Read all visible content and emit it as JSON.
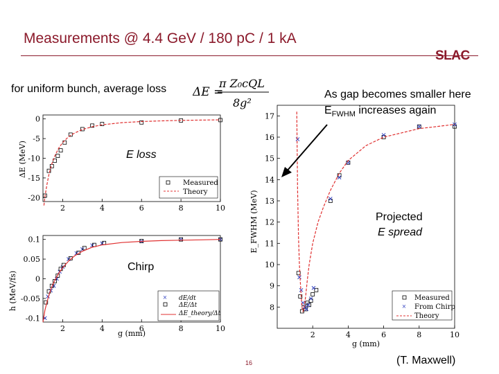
{
  "slide": {
    "title": "Measurements @ 4.4 GeV / 180 pC / 1 kA",
    "logo": "SLAC",
    "uniform_note": "for uniform bunch, average loss",
    "formula": {
      "lhs": "ΔE =",
      "numerator": "π Z₀cQL",
      "denominator": "8g²"
    },
    "gap_note_line1": "As gap becomes smaller here",
    "gap_note_line2_pre": "E",
    "gap_note_line2_sub": "FWHM",
    "gap_note_line2_post": " increases again",
    "label_eloss": "E loss",
    "label_chirp": "Chirp",
    "label_spread_line1": "Projected",
    "label_spread_line2": "E spread",
    "page_number": "16",
    "credit": "(T. Maxwell)",
    "colors": {
      "title": "#8b1a2b",
      "theory": "#e03030",
      "measured": "#000000",
      "chirp": "#2f3fbf"
    }
  },
  "chart_data": [
    {
      "type": "scatter",
      "xlabel": "",
      "ylabel": "ΔE (MeV)",
      "xlim": [
        1,
        10
      ],
      "ylim": [
        -21,
        1
      ],
      "xticks": [
        2,
        4,
        6,
        8,
        10
      ],
      "yticks": [
        0,
        -5,
        -10,
        -15,
        -20
      ],
      "ytick_labels": [
        "0",
        "-5",
        "-10",
        "-15",
        "-20"
      ],
      "legend": [
        "Measured",
        "Theory"
      ],
      "series": [
        {
          "name": "Measured",
          "marker": "square",
          "x": [
            1.1,
            1.3,
            1.45,
            1.6,
            1.75,
            1.9,
            2.1,
            2.4,
            3.0,
            3.5,
            4.0,
            6.0,
            8.0,
            10.0
          ],
          "y": [
            -19.5,
            -13.2,
            -12.0,
            -10.6,
            -9.4,
            -8.0,
            -6.0,
            -4.0,
            -2.6,
            -1.7,
            -1.3,
            -0.9,
            -0.4,
            -0.3
          ]
        },
        {
          "name": "Theory",
          "marker": "line",
          "x": [
            1.05,
            1.1,
            1.2,
            1.3,
            1.45,
            1.6,
            1.8,
            2.0,
            2.3,
            2.6,
            3.0,
            3.5,
            4.0,
            5.0,
            6.0,
            7.0,
            8.0,
            9.0,
            10.0
          ],
          "y": [
            -22.0,
            -19.8,
            -16.7,
            -14.2,
            -11.4,
            -9.4,
            -7.4,
            -6.0,
            -4.5,
            -3.6,
            -2.7,
            -2.0,
            -1.5,
            -0.96,
            -0.67,
            -0.49,
            -0.38,
            -0.3,
            -0.24
          ]
        }
      ]
    },
    {
      "type": "scatter",
      "xlabel": "g (mm)",
      "ylabel": "h (MeV/fs)",
      "xlim": [
        1,
        10
      ],
      "ylim": [
        -0.11,
        0.11
      ],
      "xticks": [
        2,
        4,
        6,
        8,
        10
      ],
      "yticks": [
        0.1,
        0.05,
        0,
        -0.05,
        -0.1
      ],
      "ytick_labels": [
        "0.1",
        "0.05",
        "0",
        "-0.05",
        "-0.1"
      ],
      "legend": [
        "dE/dt",
        "ΔE/Δt",
        "ΔE_theory/Δt"
      ],
      "series": [
        {
          "name": "dE/dt",
          "marker": "x",
          "x": [
            1.1,
            1.25,
            1.4,
            1.55,
            1.7,
            1.85,
            2.0,
            2.3,
            2.7,
            3.0,
            3.5,
            4.0,
            6.0,
            8.0,
            10.0
          ],
          "y": [
            -0.1,
            -0.045,
            -0.03,
            -0.018,
            0.0,
            0.018,
            0.03,
            0.05,
            0.065,
            0.075,
            0.085,
            0.09,
            0.095,
            0.1,
            0.1
          ]
        },
        {
          "name": "ΔE/Δt",
          "marker": "square",
          "x": [
            1.15,
            1.3,
            1.45,
            1.6,
            1.75,
            1.9,
            2.05,
            2.4,
            2.8,
            3.1,
            3.6,
            4.1,
            6.0,
            8.0,
            10.0
          ],
          "y": [
            -0.06,
            -0.032,
            -0.018,
            -0.006,
            0.008,
            0.025,
            0.035,
            0.052,
            0.066,
            0.078,
            0.086,
            0.091,
            0.096,
            0.1,
            0.1
          ]
        },
        {
          "name": "ΔE_theory/Δt",
          "marker": "line",
          "x": [
            1.0,
            1.1,
            1.2,
            1.3,
            1.45,
            1.6,
            1.8,
            2.0,
            2.3,
            2.6,
            3.0,
            3.5,
            4.0,
            5.0,
            6.0,
            7.0,
            8.0,
            9.0,
            10.0
          ],
          "y": [
            -0.11,
            -0.08,
            -0.06,
            -0.042,
            -0.02,
            -0.004,
            0.014,
            0.028,
            0.045,
            0.058,
            0.07,
            0.08,
            0.086,
            0.092,
            0.095,
            0.097,
            0.098,
            0.099,
            0.1
          ]
        }
      ]
    },
    {
      "type": "scatter",
      "xlabel": "g (mm)",
      "ylabel": "E_FWHM (MeV)",
      "xlim": [
        0,
        10
      ],
      "ylim": [
        7,
        17.5
      ],
      "xticks": [
        2,
        4,
        6,
        8,
        10
      ],
      "yticks": [
        8,
        9,
        10,
        11,
        12,
        13,
        14,
        15,
        16,
        17
      ],
      "legend": [
        "Measured",
        "From Chirp",
        "Theory"
      ],
      "series": [
        {
          "name": "Measured",
          "marker": "square",
          "x": [
            1.2,
            1.3,
            1.4,
            1.5,
            1.6,
            1.7,
            1.8,
            1.9,
            2.0,
            2.2,
            3.0,
            3.5,
            4.0,
            6.0,
            8.0,
            10.0
          ],
          "y": [
            9.6,
            8.5,
            7.8,
            8.0,
            7.9,
            8.2,
            8.1,
            8.3,
            8.6,
            8.8,
            13.0,
            14.2,
            14.8,
            16.0,
            16.5,
            16.5
          ]
        },
        {
          "name": "From Chirp",
          "marker": "x",
          "x": [
            1.15,
            1.25,
            1.35,
            1.45,
            1.55,
            1.65,
            1.75,
            1.9,
            2.05,
            3.0,
            3.5,
            4.0,
            6.0,
            8.0,
            10.0
          ],
          "y": [
            15.9,
            9.4,
            8.8,
            8.2,
            8.0,
            7.9,
            8.1,
            8.4,
            8.9,
            13.1,
            14.1,
            14.8,
            16.1,
            16.5,
            16.6
          ]
        },
        {
          "name": "Theory",
          "marker": "line",
          "x": [
            1.1,
            1.15,
            1.2,
            1.25,
            1.3,
            1.35,
            1.4,
            1.45,
            1.5,
            1.55,
            1.6,
            1.7,
            1.8,
            2.0,
            2.3,
            2.6,
            3.0,
            3.5,
            4.0,
            5.0,
            6.0,
            7.0,
            8.0,
            9.0,
            10.0
          ],
          "y": [
            17.2,
            13.5,
            11.3,
            10.0,
            9.2,
            8.5,
            8.0,
            7.8,
            7.9,
            8.2,
            8.5,
            9.3,
            10.0,
            11.0,
            12.0,
            12.7,
            13.5,
            14.3,
            14.9,
            15.6,
            16.0,
            16.2,
            16.4,
            16.5,
            16.6
          ]
        }
      ]
    }
  ]
}
